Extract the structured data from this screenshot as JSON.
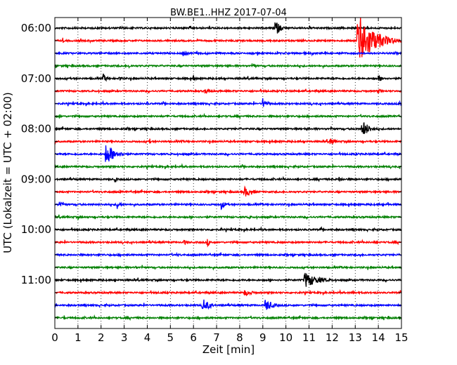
{
  "chart_data": {
    "type": "line",
    "title": "BW.BE1..HHZ 2017-07-04",
    "xlabel": "Zeit  [min]",
    "ylabel": "UTC (Lokalzeit = UTC + 02:00)",
    "xlim": [
      0,
      15
    ],
    "x_ticks": [
      "0",
      "1",
      "2",
      "3",
      "4",
      "5",
      "6",
      "7",
      "8",
      "9",
      "10",
      "11",
      "12",
      "13",
      "14",
      "15"
    ],
    "y_tick_labels": [
      "06:00",
      "07:00",
      "08:00",
      "09:00",
      "10:00",
      "11:00"
    ],
    "grid": true,
    "trace_interval_min": 15,
    "trace_colors": [
      "#000000",
      "#ff0000",
      "#0000ff",
      "#008000"
    ],
    "traces": [
      {
        "start": "06:00",
        "events": [
          {
            "t": 9.5,
            "amp": 14,
            "dur": 0.5
          }
        ]
      },
      {
        "start": "06:15",
        "events": [
          {
            "t": 13.1,
            "amp": 40,
            "dur": 1.5
          },
          {
            "t": 0.35,
            "amp": 5,
            "dur": 0.1
          }
        ]
      },
      {
        "start": "06:30",
        "events": [
          {
            "t": 5.5,
            "amp": 6,
            "dur": 0.4
          }
        ]
      },
      {
        "start": "06:45",
        "events": [
          {
            "t": 3.2,
            "amp": 4,
            "dur": 0.2
          },
          {
            "t": 8.6,
            "amp": 5,
            "dur": 0.2
          }
        ]
      },
      {
        "start": "07:00",
        "events": [
          {
            "t": 2.1,
            "amp": 7,
            "dur": 0.3
          },
          {
            "t": 2.8,
            "amp": 5,
            "dur": 0.2
          },
          {
            "t": 6.0,
            "amp": 5,
            "dur": 0.2
          },
          {
            "t": 14.0,
            "amp": 5,
            "dur": 0.6
          }
        ]
      },
      {
        "start": "07:15",
        "events": [
          {
            "t": 6.5,
            "amp": 4,
            "dur": 0.6
          },
          {
            "t": 14.0,
            "amp": 4,
            "dur": 0.3
          }
        ]
      },
      {
        "start": "07:30",
        "events": [
          {
            "t": 9.0,
            "amp": 8,
            "dur": 0.4
          },
          {
            "t": 4.0,
            "amp": 4,
            "dur": 0.1
          },
          {
            "t": 14.9,
            "amp": 6,
            "dur": 0.3
          }
        ]
      },
      {
        "start": "07:45",
        "events": [
          {
            "t": 0.2,
            "amp": 3,
            "dur": 0.3
          }
        ]
      },
      {
        "start": "08:00",
        "events": [
          {
            "t": 13.3,
            "amp": 14,
            "dur": 0.6
          }
        ]
      },
      {
        "start": "08:15",
        "events": [
          {
            "t": 11.9,
            "amp": 5,
            "dur": 0.5
          },
          {
            "t": 4.1,
            "amp": 5,
            "dur": 0.1
          }
        ]
      },
      {
        "start": "08:30",
        "events": [
          {
            "t": 2.2,
            "amp": 17,
            "dur": 0.8
          }
        ]
      },
      {
        "start": "08:45",
        "events": [
          {
            "t": 3.0,
            "amp": 2,
            "dur": 0.2
          }
        ]
      },
      {
        "start": "09:00",
        "events": [
          {
            "t": 2.6,
            "amp": 5,
            "dur": 0.2
          },
          {
            "t": 12.3,
            "amp": 4,
            "dur": 0.4
          }
        ]
      },
      {
        "start": "09:15",
        "events": [
          {
            "t": 8.2,
            "amp": 8,
            "dur": 0.8
          },
          {
            "t": 2.8,
            "amp": 5,
            "dur": 0.1
          }
        ]
      },
      {
        "start": "09:30",
        "events": [
          {
            "t": 0.2,
            "amp": 6,
            "dur": 0.4
          },
          {
            "t": 2.7,
            "amp": 7,
            "dur": 0.3
          },
          {
            "t": 7.2,
            "amp": 7,
            "dur": 0.4
          },
          {
            "t": 14.4,
            "amp": 5,
            "dur": 0.1
          }
        ]
      },
      {
        "start": "09:45",
        "events": [
          {
            "t": 1.0,
            "amp": 4,
            "dur": 0.1
          },
          {
            "t": 8.4,
            "amp": 4,
            "dur": 0.2
          }
        ]
      },
      {
        "start": "10:00",
        "events": [
          {
            "t": 7.2,
            "amp": 4,
            "dur": 0.1
          },
          {
            "t": 11.5,
            "amp": 4,
            "dur": 0.1
          }
        ]
      },
      {
        "start": "10:15",
        "events": [
          {
            "t": 6.6,
            "amp": 6,
            "dur": 0.3
          },
          {
            "t": 5.6,
            "amp": 5,
            "dur": 0.2
          },
          {
            "t": 13.8,
            "amp": 4,
            "dur": 0.2
          }
        ]
      },
      {
        "start": "10:30",
        "events": [
          {
            "t": 5.3,
            "amp": 4,
            "dur": 0.2
          },
          {
            "t": 13.2,
            "amp": 4,
            "dur": 0.1
          }
        ]
      },
      {
        "start": "10:45",
        "events": [
          {
            "t": 3.5,
            "amp": 3,
            "dur": 0.2
          }
        ]
      },
      {
        "start": "11:00",
        "events": [
          {
            "t": 10.8,
            "amp": 12,
            "dur": 1.2
          }
        ]
      },
      {
        "start": "11:15",
        "events": [
          {
            "t": 8.2,
            "amp": 5,
            "dur": 0.8
          },
          {
            "t": 12.9,
            "amp": 3,
            "dur": 0.4
          }
        ]
      },
      {
        "start": "11:30",
        "events": [
          {
            "t": 6.4,
            "amp": 11,
            "dur": 0.6
          },
          {
            "t": 9.1,
            "amp": 9,
            "dur": 0.7
          }
        ]
      },
      {
        "start": "11:45",
        "events": [
          {
            "t": 0.4,
            "amp": 4,
            "dur": 0.1
          }
        ]
      }
    ]
  }
}
